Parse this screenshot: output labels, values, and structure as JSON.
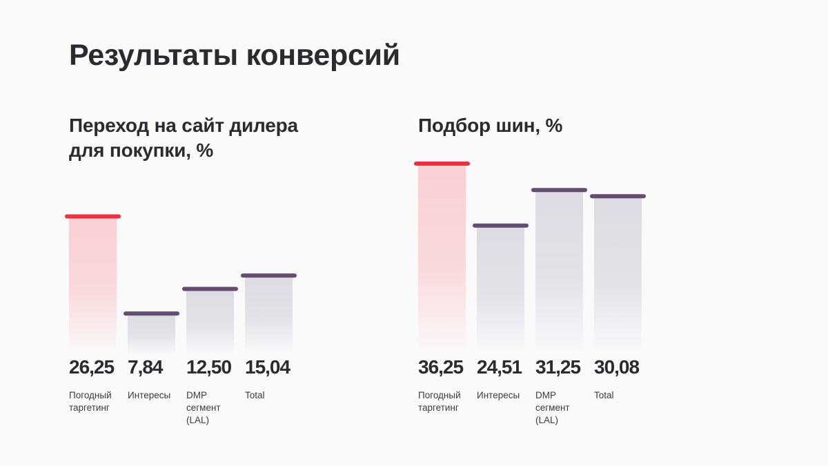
{
  "title": "Результаты конверсий",
  "colors": {
    "highlight": "#ee2f3d",
    "normal": "#634e72",
    "highlight_fill": "#f9cfd4",
    "normal_fill": "#dcdbe1"
  },
  "chart_data": [
    {
      "type": "bar",
      "title": "Переход на сайт дилера\nдля покупки, %",
      "categories": [
        "Погодный\nтаргетинг",
        "Интересы",
        "DMP\nсегмент\n(LAL)",
        "Total"
      ],
      "values": [
        26.25,
        7.84,
        12.5,
        15.04
      ],
      "value_labels": [
        "26,25",
        "7,84",
        "12,50",
        "15,04"
      ],
      "highlight_index": 0,
      "grid": false,
      "legend": "none"
    },
    {
      "type": "bar",
      "title": "Подбор шин, %",
      "categories": [
        "Погодный\nтаргетинг",
        "Интересы",
        "DMP\nсегмент\n(LAL)",
        "Total"
      ],
      "values": [
        36.25,
        24.51,
        31.25,
        30.08
      ],
      "value_labels": [
        "36,25",
        "24,51",
        "31,25",
        "30,08"
      ],
      "highlight_index": 0,
      "grid": false,
      "legend": "none"
    }
  ]
}
